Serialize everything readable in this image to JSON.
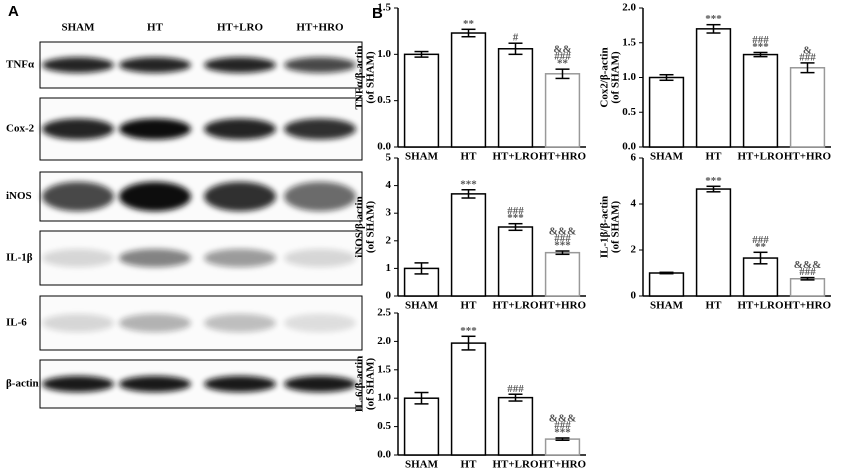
{
  "panel_a": {
    "label": "A",
    "columns": [
      "SHAM",
      "HT",
      "HT+LRO",
      "HT+HRO"
    ],
    "rows": [
      "TNFα",
      "Cox-2",
      "iNOS",
      "IL-1β",
      "IL-6",
      "β-actin"
    ]
  },
  "panel_b_label": "B",
  "chart_data": [
    {
      "type": "bar",
      "ylabel": "TNFα/β-actin",
      "ylabel2": "(of SHAM)",
      "categories": [
        "SHAM",
        "HT",
        "HT+LRO",
        "HT+HRO"
      ],
      "values": [
        1.0,
        1.23,
        1.06,
        0.79
      ],
      "errors": [
        0.03,
        0.04,
        0.06,
        0.05
      ],
      "colors": [
        "#000000",
        "#000000",
        "#000000",
        "#999999"
      ],
      "annotations": [
        [],
        [
          "**"
        ],
        [
          "#"
        ],
        [
          "&&",
          "###",
          "**"
        ]
      ],
      "ylim": [
        0,
        1.5
      ],
      "yticks": [
        {
          "value": 0,
          "label": "0.0"
        },
        {
          "value": 0.5,
          "label": "0.5"
        },
        {
          "value": 1,
          "label": "1.0"
        },
        {
          "value": 1.5,
          "label": "1.5"
        }
      ]
    },
    {
      "type": "bar",
      "ylabel": "Cox2/β-actin",
      "ylabel2": "(of SHAM)",
      "categories": [
        "SHAM",
        "HT",
        "HT+LRO",
        "HT+HRO"
      ],
      "values": [
        1.0,
        1.7,
        1.33,
        1.14
      ],
      "errors": [
        0.04,
        0.06,
        0.03,
        0.07
      ],
      "colors": [
        "#000000",
        "#000000",
        "#000000",
        "#999999"
      ],
      "annotations": [
        [],
        [
          "***"
        ],
        [
          "###",
          "***"
        ],
        [
          "&",
          "###"
        ]
      ],
      "ylim": [
        0,
        2
      ],
      "yticks": [
        {
          "value": 0,
          "label": "0.0"
        },
        {
          "value": 0.5,
          "label": "0.5"
        },
        {
          "value": 1,
          "label": "1.0"
        },
        {
          "value": 1.5,
          "label": "1.5"
        },
        {
          "value": 2,
          "label": "2.0"
        }
      ]
    },
    {
      "type": "bar",
      "ylabel": "iNOS/β-actin",
      "ylabel2": "(of SHAM)",
      "categories": [
        "SHAM",
        "HT",
        "HT+LRO",
        "HT+HRO"
      ],
      "values": [
        1.0,
        3.7,
        2.5,
        1.57
      ],
      "errors": [
        0.2,
        0.15,
        0.12,
        0.06
      ],
      "colors": [
        "#000000",
        "#000000",
        "#000000",
        "#999999"
      ],
      "annotations": [
        [],
        [
          "***"
        ],
        [
          "###",
          "***"
        ],
        [
          "&&&",
          "###",
          "***"
        ]
      ],
      "ylim": [
        0,
        5
      ],
      "yticks": [
        0,
        1,
        2,
        3,
        4,
        5
      ]
    },
    {
      "type": "bar",
      "ylabel": "IL-1β/β-actin",
      "ylabel2": "(of SHAM)",
      "categories": [
        "SHAM",
        "HT",
        "HT+LRO",
        "HT+HRO"
      ],
      "values": [
        1.0,
        4.65,
        1.65,
        0.75
      ],
      "errors": [
        0.03,
        0.12,
        0.25,
        0.05
      ],
      "colors": [
        "#000000",
        "#000000",
        "#000000",
        "#999999"
      ],
      "annotations": [
        [],
        [
          "***"
        ],
        [
          "###",
          "**"
        ],
        [
          "&&&",
          "###"
        ]
      ],
      "ylim": [
        0,
        6
      ],
      "yticks": [
        0,
        2,
        4,
        6
      ]
    },
    {
      "type": "bar",
      "ylabel": "IL-6/β-actin",
      "ylabel2": "(of SHAM)",
      "categories": [
        "SHAM",
        "HT",
        "HT+LRO",
        "HT+HRO"
      ],
      "values": [
        1.0,
        1.97,
        1.01,
        0.28
      ],
      "errors": [
        0.1,
        0.12,
        0.06,
        0.02
      ],
      "colors": [
        "#000000",
        "#000000",
        "#000000",
        "#999999"
      ],
      "annotations": [
        [],
        [
          "***"
        ],
        [
          "###"
        ],
        [
          "&&&",
          "###",
          "***"
        ]
      ],
      "ylim": [
        0,
        2.5
      ],
      "yticks": [
        {
          "value": 0,
          "label": "0.0"
        },
        {
          "value": 0.5,
          "label": "0.5"
        },
        {
          "value": 1,
          "label": "1.0"
        },
        {
          "value": 1.5,
          "label": "1.5"
        },
        {
          "value": 2,
          "label": "2.0"
        },
        {
          "value": 2.5,
          "label": "2.5"
        }
      ]
    }
  ]
}
